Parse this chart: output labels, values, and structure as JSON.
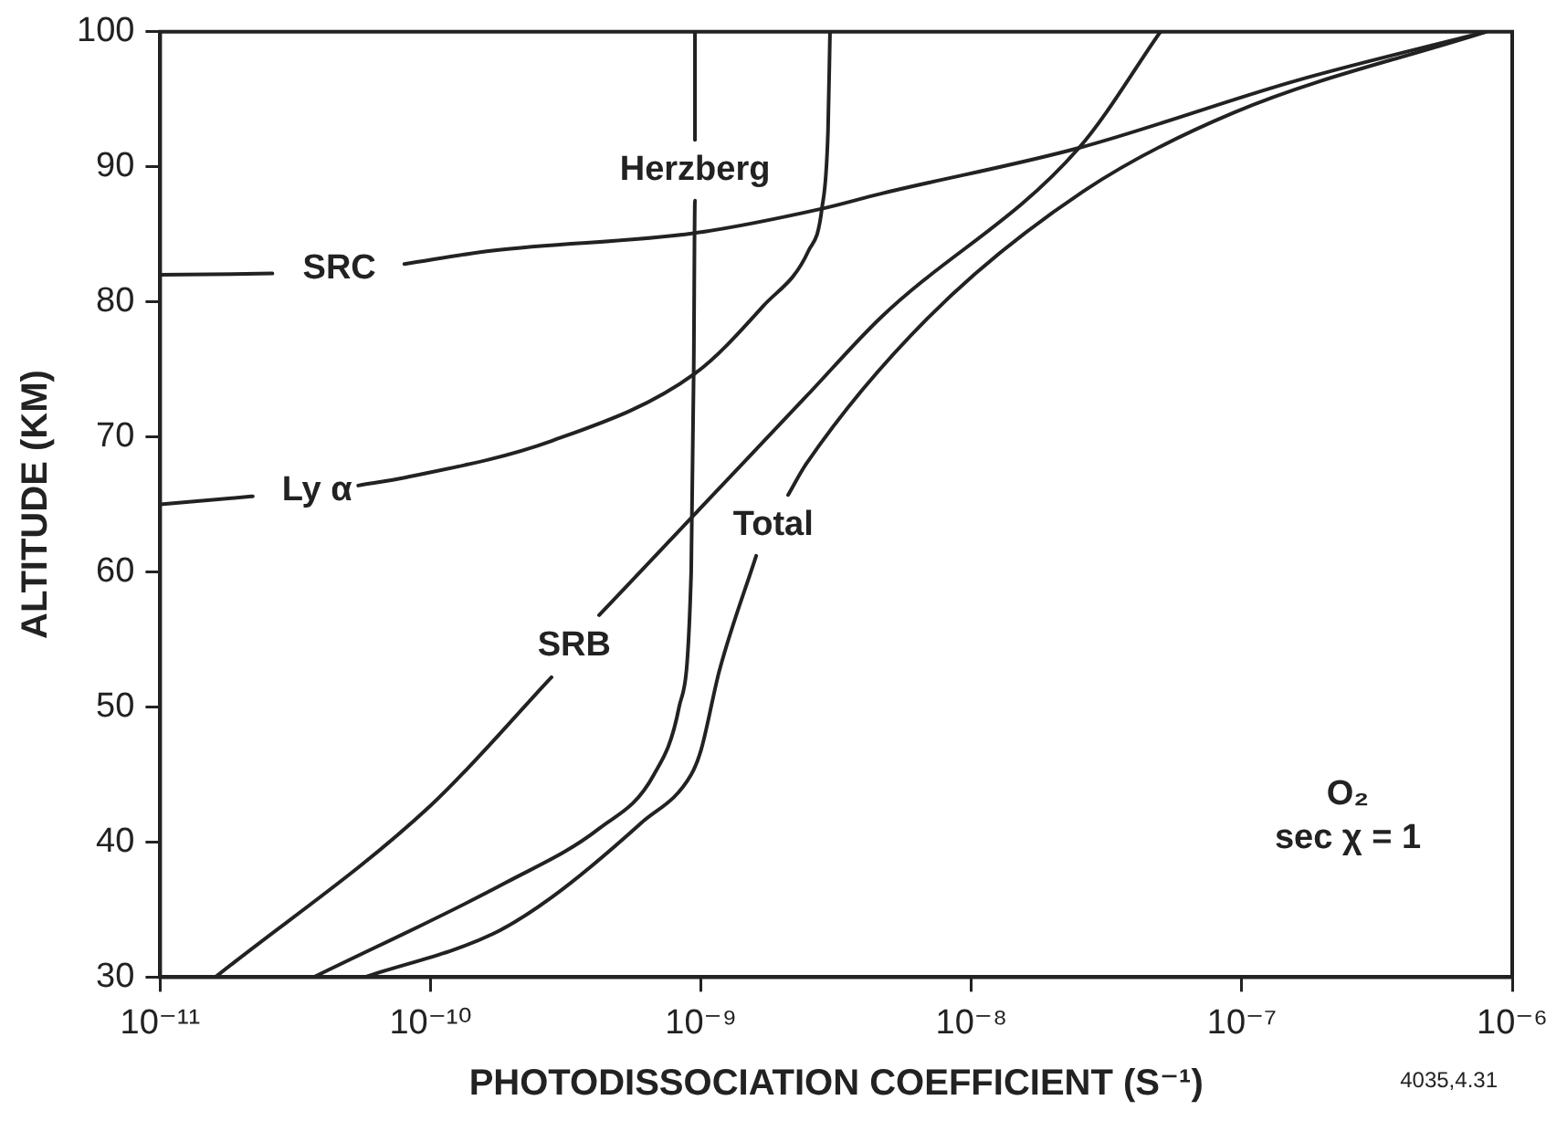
{
  "chart_data": {
    "type": "line",
    "xlabel": "PHOTODISSOCIATION COEFFICIENT (S⁻¹)",
    "ylabel": "ALTITUDE (KM)",
    "log": "x",
    "xlim": [
      1e-11,
      1e-06
    ],
    "xticks": [
      {
        "value": 1e-11,
        "label": "10⁻¹¹"
      },
      {
        "value": 1e-10,
        "label": "10⁻¹⁰"
      },
      {
        "value": 1e-09,
        "label": "10⁻⁹"
      },
      {
        "value": 1e-08,
        "label": "10⁻⁸"
      },
      {
        "value": 1e-07,
        "label": "10⁻⁷"
      },
      {
        "value": 1e-06,
        "label": "10⁻⁶"
      }
    ],
    "ylim": [
      30,
      100
    ],
    "yticks": [
      30,
      40,
      50,
      60,
      70,
      80,
      90,
      100
    ],
    "grid": false,
    "legend": false,
    "marker": "none",
    "line_style": "solid",
    "series": [
      {
        "name": "Herzberg",
        "color": "#222222",
        "x": [
          3.7e-11,
          1.9e-10,
          4.2e-10,
          6.7e-10,
          8.3e-10,
          9.2e-10,
          9.4e-10,
          9.5e-10,
          9.5e-10,
          9.5e-10
        ],
        "values": [
          30,
          37,
          41,
          45,
          50,
          60,
          75,
          87.5,
          92,
          100
        ]
      },
      {
        "name": "SRC",
        "color": "#222222",
        "x": [
          1e-11,
          2.6e-11,
          4.6e-11,
          8e-11,
          1.7e-10,
          9.5e-10,
          2.8e-09,
          4.6e-09,
          2.5e-08,
          1.6e-07,
          8e-07
        ],
        "values": [
          82,
          82.1,
          null,
          82.8,
          83.8,
          85.1,
          86.9,
          88,
          91.4,
          96.4,
          100
        ]
      },
      {
        "name": "Ly α",
        "color": "#222222",
        "x": [
          1e-11,
          2.2e-11,
          3.8e-11,
          5.4e-11,
          8.1e-11,
          2.8e-10,
          9.5e-10,
          1.7e-09,
          2.5e-09,
          2.8e-09,
          2.95e-09,
          3e-09
        ],
        "values": [
          65,
          65.6,
          null,
          66.4,
          67,
          69.7,
          74.7,
          79.7,
          83.8,
          86.9,
          92.7,
          100
        ]
      },
      {
        "name": "SRB",
        "color": "#222222",
        "x": [
          1.6e-11,
          1e-10,
          2.8e-10,
          3.4e-10,
          4.2e-10,
          9.1e-10,
          2.45e-09,
          4.6e-09,
          2.5e-08,
          5e-08
        ],
        "values": [
          30,
          42.7,
          52.2,
          null,
          56.8,
          63.9,
          73,
          78.8,
          91.4,
          100
        ]
      },
      {
        "name": "Total",
        "color": "#222222",
        "x": [
          5.7e-11,
          1.7e-10,
          2.8e-10,
          6e-10,
          9.2e-10,
          1e-09,
          1.17e-09,
          1.6e-09,
          1.85e-09,
          2.1e-09,
          2.45e-09,
          6.9e-09,
          2.6e-08,
          9.3e-08,
          8e-07
        ],
        "values": [
          30,
          33.2,
          35.9,
          41.4,
          45,
          46.8,
          52.7,
          61.2,
          null,
          65.7,
          68,
          78.8,
          88.2,
          94,
          100
        ]
      }
    ],
    "annotations": [
      "O₂",
      "sec χ = 1",
      "4035,4.31"
    ]
  }
}
